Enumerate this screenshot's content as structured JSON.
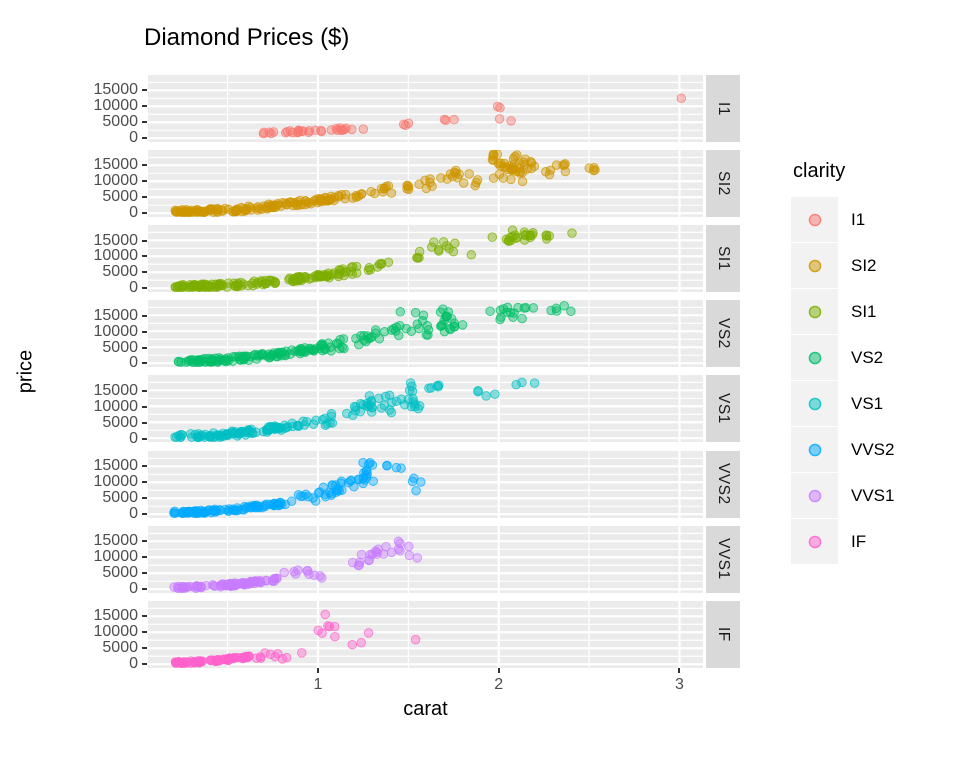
{
  "title": "Diamond Prices ($)",
  "x_axis": {
    "label": "carat",
    "ticks": [
      1,
      2,
      3
    ],
    "minor_ticks": [
      0.5,
      1.5,
      2.5
    ],
    "range": [
      0.06,
      3.13
    ]
  },
  "y_axis": {
    "label": "price",
    "ticks": [
      0,
      5000,
      10000,
      15000
    ],
    "minor_ticks": [
      2500,
      7500,
      12500,
      17500
    ],
    "range": [
      -1200,
      19800
    ]
  },
  "legend": {
    "title": "clarity",
    "entries": [
      {
        "label": "I1",
        "color": "#F8766D"
      },
      {
        "label": "SI2",
        "color": "#CD9600"
      },
      {
        "label": "SI1",
        "color": "#7CAE00"
      },
      {
        "label": "VS2",
        "color": "#00BE67"
      },
      {
        "label": "VS1",
        "color": "#00BFC4"
      },
      {
        "label": "VVS2",
        "color": "#00A9FF"
      },
      {
        "label": "VVS1",
        "color": "#C77CFF"
      },
      {
        "label": "IF",
        "color": "#FF61CC"
      }
    ]
  },
  "style_colors": {
    "panel_background": "#EBEBEB",
    "gridline": "#FFFFFF",
    "strip_background": "#D9D9D9",
    "strip_text": "#1A1A1A",
    "axis_text": "#4D4D4D",
    "legend_key_background": "#F2F2F2",
    "point_alpha": 0.42
  },
  "chart_data": {
    "type": "scatter",
    "title": "Diamond Prices ($)",
    "xlabel": "carat",
    "ylabel": "price",
    "facet_by": "clarity",
    "facets": [
      "I1",
      "SI2",
      "SI1",
      "VS2",
      "VS1",
      "VVS2",
      "VVS1",
      "IF"
    ],
    "xlim": [
      0.06,
      3.13
    ],
    "ylim": [
      -1200,
      19800
    ],
    "grid": true,
    "legend_position": "right",
    "series": [
      {
        "name": "I1",
        "color": "#F8766D",
        "seed": 11,
        "clusters": [
          {
            "n": 30,
            "carat": [
              0.68,
              1.27
            ],
            "price": [
              1600,
              3300
            ],
            "curve": 1.2,
            "jit": 0.5
          },
          {
            "n": 3,
            "carat": [
              1.47,
              1.58
            ],
            "price": [
              3900,
              4700
            ]
          },
          {
            "n": 3,
            "carat": [
              1.68,
              1.78
            ],
            "price": [
              5200,
              6400
            ]
          },
          {
            "n": 2,
            "carat": [
              1.98,
              2.05
            ],
            "price": [
              9400,
              10300
            ]
          },
          {
            "n": 2,
            "carat": [
              2.0,
              2.07
            ],
            "price": [
              5400,
              6300
            ]
          }
        ],
        "outliers": [
          [
            3.01,
            12500
          ]
        ]
      },
      {
        "name": "SI2",
        "color": "#CD9600",
        "seed": 22,
        "clusters": [
          {
            "n": 130,
            "carat": [
              0.21,
              1.08
            ],
            "price": [
              350,
              4700
            ],
            "curve": 1.8,
            "jit": 0.35
          },
          {
            "n": 26,
            "carat": [
              1.0,
              1.4
            ],
            "price": [
              3900,
              8000
            ],
            "curve": 1.2,
            "jit": 0.45
          },
          {
            "n": 16,
            "carat": [
              1.4,
              1.75
            ],
            "price": [
              6200,
              11500
            ],
            "curve": 1.1,
            "jit": 0.5
          },
          {
            "n": 10,
            "carat": [
              1.75,
              1.95
            ],
            "price": [
              8500,
              13500
            ]
          },
          {
            "n": 42,
            "carat": [
              1.96,
              2.2
            ],
            "price": [
              9800,
              18600
            ]
          },
          {
            "n": 12,
            "carat": [
              2.2,
              2.56
            ],
            "price": [
              11500,
              17500
            ]
          }
        ],
        "outliers": []
      },
      {
        "name": "SI1",
        "color": "#7CAE00",
        "seed": 33,
        "clusters": [
          {
            "n": 120,
            "carat": [
              0.2,
              1.1
            ],
            "price": [
              350,
              4500
            ],
            "curve": 1.8,
            "jit": 0.35
          },
          {
            "n": 26,
            "carat": [
              1.05,
              1.52
            ],
            "price": [
              4300,
              9800
            ],
            "curve": 1.2,
            "jit": 0.45
          },
          {
            "n": 14,
            "carat": [
              1.5,
              1.85
            ],
            "price": [
              8500,
              14500
            ]
          },
          {
            "n": 20,
            "carat": [
              1.96,
              2.2
            ],
            "price": [
              14200,
              18600
            ]
          },
          {
            "n": 5,
            "carat": [
              2.2,
              2.42
            ],
            "price": [
              15200,
              17300
            ]
          }
        ],
        "outliers": []
      },
      {
        "name": "VS2",
        "color": "#00BE67",
        "seed": 44,
        "clusters": [
          {
            "n": 110,
            "carat": [
              0.2,
              1.02
            ],
            "price": [
              380,
              4900
            ],
            "curve": 1.8,
            "jit": 0.35
          },
          {
            "n": 34,
            "carat": [
              1.0,
              1.45
            ],
            "price": [
              4500,
              11200
            ],
            "curve": 1.2,
            "jit": 0.5
          },
          {
            "n": 22,
            "carat": [
              1.42,
              1.8
            ],
            "price": [
              8200,
              17800
            ]
          },
          {
            "n": 10,
            "carat": [
              1.66,
              1.76
            ],
            "price": [
              9800,
              18200
            ]
          },
          {
            "n": 14,
            "carat": [
              1.9,
              2.16
            ],
            "price": [
              13600,
              17800
            ]
          },
          {
            "n": 6,
            "carat": [
              2.16,
              2.42
            ],
            "price": [
              15600,
              18200
            ]
          }
        ],
        "outliers": []
      },
      {
        "name": "VS1",
        "color": "#00BFC4",
        "seed": 55,
        "clusters": [
          {
            "n": 100,
            "carat": [
              0.2,
              0.98
            ],
            "price": [
              400,
              5100
            ],
            "curve": 1.8,
            "jit": 0.35
          },
          {
            "n": 24,
            "carat": [
              0.98,
              1.3
            ],
            "price": [
              4700,
              10800
            ],
            "curve": 1.2,
            "jit": 0.5
          },
          {
            "n": 14,
            "carat": [
              1.28,
              1.48
            ],
            "price": [
              6800,
              13600
            ]
          },
          {
            "n": 12,
            "carat": [
              1.49,
              1.57
            ],
            "price": [
              9200,
              17700
            ]
          },
          {
            "n": 5,
            "carat": [
              1.6,
              1.78
            ],
            "price": [
              10800,
              17200
            ]
          },
          {
            "n": 4,
            "carat": [
              1.85,
              2.0
            ],
            "price": [
              13200,
              15300
            ]
          },
          {
            "n": 3,
            "carat": [
              2.06,
              2.22
            ],
            "price": [
              16600,
              17700
            ]
          }
        ],
        "outliers": []
      },
      {
        "name": "VVS2",
        "color": "#00A9FF",
        "seed": 66,
        "clusters": [
          {
            "n": 90,
            "carat": [
              0.2,
              0.82
            ],
            "price": [
              420,
              3500
            ],
            "curve": 1.7,
            "jit": 0.35
          },
          {
            "n": 8,
            "carat": [
              0.85,
              1.0
            ],
            "price": [
              3900,
              6500
            ]
          },
          {
            "n": 30,
            "carat": [
              1.0,
              1.3
            ],
            "price": [
              6200,
              12600
            ],
            "curve": 1.0,
            "jit": 0.6
          },
          {
            "n": 12,
            "carat": [
              1.22,
              1.5
            ],
            "price": [
              9800,
              16200
            ]
          },
          {
            "n": 4,
            "carat": [
              1.5,
              1.62
            ],
            "price": [
              6600,
              11600
            ]
          }
        ],
        "outliers": []
      },
      {
        "name": "VVS1",
        "color": "#C77CFF",
        "seed": 77,
        "clusters": [
          {
            "n": 85,
            "carat": [
              0.2,
              0.78
            ],
            "price": [
              420,
              3100
            ],
            "curve": 1.7,
            "jit": 0.35
          },
          {
            "n": 10,
            "carat": [
              0.8,
              1.06
            ],
            "price": [
              3300,
              6300
            ]
          },
          {
            "n": 20,
            "carat": [
              1.18,
              1.46
            ],
            "price": [
              7600,
              13600
            ],
            "curve": 0.9,
            "jit": 0.6
          },
          {
            "n": 3,
            "carat": [
              1.48,
              1.56
            ],
            "price": [
              9200,
              13900
            ]
          }
        ],
        "outliers": []
      },
      {
        "name": "IF",
        "color": "#FF61CC",
        "seed": 88,
        "clusters": [
          {
            "n": 75,
            "carat": [
              0.2,
              0.62
            ],
            "price": [
              450,
              2300
            ],
            "curve": 1.6,
            "jit": 0.4
          },
          {
            "n": 10,
            "carat": [
              0.62,
              0.95
            ],
            "price": [
              1600,
              3600
            ]
          },
          {
            "n": 6,
            "carat": [
              1.0,
              1.15
            ],
            "price": [
              7700,
              12100
            ]
          }
        ],
        "outliers": [
          [
            1.04,
            15600
          ],
          [
            1.19,
            6100
          ],
          [
            1.24,
            6700
          ],
          [
            1.28,
            9800
          ],
          [
            1.54,
            7700
          ]
        ]
      }
    ]
  }
}
